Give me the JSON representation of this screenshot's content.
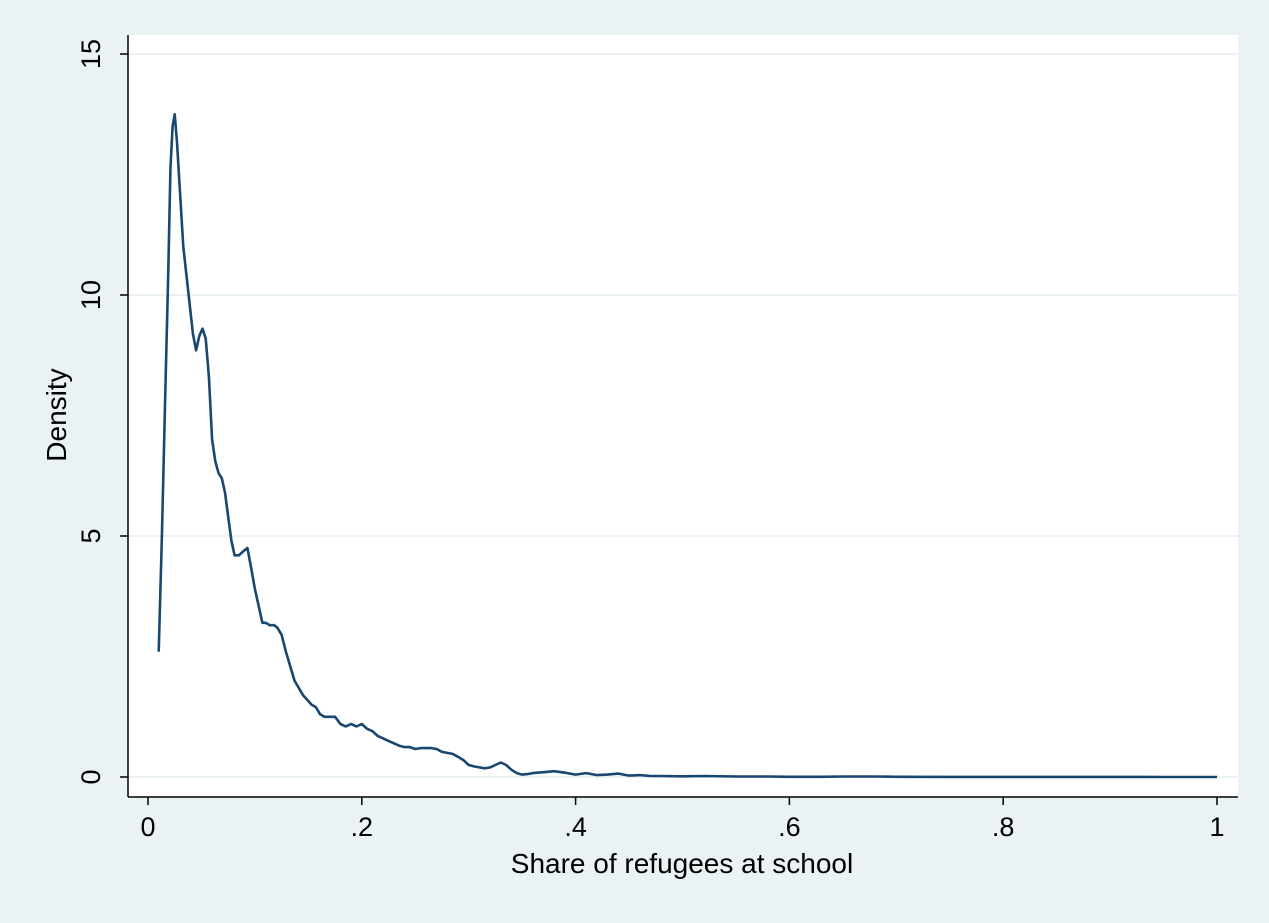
{
  "chart_data": {
    "type": "line",
    "title": "",
    "xlabel": "Share of refugees at school",
    "ylabel": "Density",
    "xlim": [
      0,
      1
    ],
    "ylim": [
      0,
      15
    ],
    "x_ticks": [
      {
        "value": 0,
        "label": "0"
      },
      {
        "value": 0.2,
        "label": ".2"
      },
      {
        "value": 0.4,
        "label": ".4"
      },
      {
        "value": 0.6,
        "label": ".6"
      },
      {
        "value": 0.8,
        "label": ".8"
      },
      {
        "value": 1,
        "label": "1"
      }
    ],
    "y_ticks": [
      {
        "value": 0,
        "label": "0"
      },
      {
        "value": 5,
        "label": "5"
      },
      {
        "value": 10,
        "label": "10"
      },
      {
        "value": 15,
        "label": "15"
      }
    ],
    "grid": "horizontal",
    "colors": {
      "line": "#1a476f",
      "plot_background": "#ffffff",
      "page_background": "#eaf2f3",
      "grid": "#eaf2f3",
      "axis": "#000000"
    },
    "series": [
      {
        "points": [
          [
            0.01,
            2.6
          ],
          [
            0.013,
            5.0
          ],
          [
            0.016,
            7.8
          ],
          [
            0.019,
            10.5
          ],
          [
            0.021,
            12.6
          ],
          [
            0.023,
            13.5
          ],
          [
            0.025,
            13.75
          ],
          [
            0.027,
            13.2
          ],
          [
            0.03,
            12.1
          ],
          [
            0.033,
            11.0
          ],
          [
            0.036,
            10.4
          ],
          [
            0.039,
            9.8
          ],
          [
            0.042,
            9.2
          ],
          [
            0.045,
            8.85
          ],
          [
            0.048,
            9.15
          ],
          [
            0.051,
            9.3
          ],
          [
            0.054,
            9.1
          ],
          [
            0.057,
            8.3
          ],
          [
            0.06,
            7.0
          ],
          [
            0.063,
            6.55
          ],
          [
            0.066,
            6.3
          ],
          [
            0.069,
            6.2
          ],
          [
            0.072,
            5.9
          ],
          [
            0.075,
            5.4
          ],
          [
            0.078,
            4.9
          ],
          [
            0.081,
            4.6
          ],
          [
            0.085,
            4.6
          ],
          [
            0.09,
            4.7
          ],
          [
            0.093,
            4.75
          ],
          [
            0.096,
            4.4
          ],
          [
            0.1,
            3.9
          ],
          [
            0.104,
            3.5
          ],
          [
            0.107,
            3.2
          ],
          [
            0.11,
            3.2
          ],
          [
            0.114,
            3.15
          ],
          [
            0.118,
            3.15
          ],
          [
            0.121,
            3.1
          ],
          [
            0.125,
            2.95
          ],
          [
            0.129,
            2.6
          ],
          [
            0.133,
            2.3
          ],
          [
            0.137,
            2.0
          ],
          [
            0.141,
            1.85
          ],
          [
            0.145,
            1.7
          ],
          [
            0.149,
            1.6
          ],
          [
            0.153,
            1.5
          ],
          [
            0.157,
            1.45
          ],
          [
            0.161,
            1.3
          ],
          [
            0.165,
            1.25
          ],
          [
            0.17,
            1.25
          ],
          [
            0.175,
            1.25
          ],
          [
            0.18,
            1.1
          ],
          [
            0.185,
            1.05
          ],
          [
            0.19,
            1.1
          ],
          [
            0.195,
            1.05
          ],
          [
            0.2,
            1.1
          ],
          [
            0.205,
            1.0
          ],
          [
            0.21,
            0.95
          ],
          [
            0.215,
            0.85
          ],
          [
            0.22,
            0.8
          ],
          [
            0.225,
            0.75
          ],
          [
            0.23,
            0.7
          ],
          [
            0.235,
            0.65
          ],
          [
            0.24,
            0.62
          ],
          [
            0.245,
            0.62
          ],
          [
            0.25,
            0.58
          ],
          [
            0.255,
            0.6
          ],
          [
            0.26,
            0.6
          ],
          [
            0.265,
            0.6
          ],
          [
            0.27,
            0.58
          ],
          [
            0.275,
            0.52
          ],
          [
            0.28,
            0.5
          ],
          [
            0.285,
            0.48
          ],
          [
            0.29,
            0.42
          ],
          [
            0.295,
            0.35
          ],
          [
            0.3,
            0.25
          ],
          [
            0.305,
            0.22
          ],
          [
            0.31,
            0.2
          ],
          [
            0.315,
            0.18
          ],
          [
            0.32,
            0.2
          ],
          [
            0.325,
            0.25
          ],
          [
            0.33,
            0.3
          ],
          [
            0.335,
            0.25
          ],
          [
            0.34,
            0.15
          ],
          [
            0.345,
            0.08
          ],
          [
            0.35,
            0.05
          ],
          [
            0.355,
            0.06
          ],
          [
            0.36,
            0.08
          ],
          [
            0.37,
            0.1
          ],
          [
            0.38,
            0.12
          ],
          [
            0.39,
            0.09
          ],
          [
            0.4,
            0.05
          ],
          [
            0.41,
            0.08
          ],
          [
            0.42,
            0.04
          ],
          [
            0.43,
            0.05
          ],
          [
            0.44,
            0.07
          ],
          [
            0.45,
            0.03
          ],
          [
            0.46,
            0.04
          ],
          [
            0.47,
            0.02
          ],
          [
            0.48,
            0.02
          ],
          [
            0.5,
            0.015
          ],
          [
            0.52,
            0.02
          ],
          [
            0.55,
            0.01
          ],
          [
            0.58,
            0.01
          ],
          [
            0.6,
            0.005
          ],
          [
            0.63,
            0.004
          ],
          [
            0.65,
            0.01
          ],
          [
            0.68,
            0.01
          ],
          [
            0.7,
            0.004
          ],
          [
            0.75,
            0.003
          ],
          [
            0.8,
            0.003
          ],
          [
            0.85,
            0.002
          ],
          [
            0.9,
            0.002
          ],
          [
            0.95,
            0.001
          ],
          [
            1.0,
            0.0
          ]
        ]
      }
    ]
  }
}
